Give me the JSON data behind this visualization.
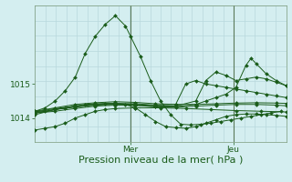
{
  "background_color": "#d4eef0",
  "grid_color": "#b8d8dc",
  "line_color": "#1a5c1a",
  "xlabel": "Pression niveau de la mer( hPa )",
  "xlabel_color": "#1a5c1a",
  "xlabel_fontsize": 8,
  "tick_color": "#1a5c1a",
  "xtick_labels": [
    "Mer",
    "Jeu"
  ],
  "xtick_positions": [
    0.38,
    0.79
  ],
  "ytick_labels": [
    "1014",
    "1015"
  ],
  "ytick_values": [
    1014,
    1015
  ],
  "ylim": [
    1013.3,
    1017.3
  ],
  "xlim": [
    0.0,
    1.0
  ],
  "n_vgrid": 25,
  "n_hgrid": 10,
  "series": [
    {
      "x": [
        0.0,
        0.04,
        0.08,
        0.12,
        0.16,
        0.2,
        0.24,
        0.28,
        0.32,
        0.36,
        0.38,
        0.42,
        0.46,
        0.5,
        0.54,
        0.58,
        0.62,
        0.66,
        0.7,
        0.74,
        0.78,
        0.82,
        0.86,
        0.9,
        0.94,
        0.98
      ],
      "y": [
        1014.2,
        1014.3,
        1014.5,
        1014.8,
        1015.2,
        1015.9,
        1016.4,
        1016.75,
        1017.0,
        1016.7,
        1016.4,
        1015.8,
        1015.1,
        1014.5,
        1014.1,
        1013.82,
        1013.8,
        1013.82,
        1013.85,
        1013.9,
        1013.95,
        1014.0,
        1014.05,
        1014.1,
        1014.15,
        1014.2
      ]
    },
    {
      "x": [
        0.0,
        0.04,
        0.08,
        0.12,
        0.16,
        0.2,
        0.24,
        0.28,
        0.32,
        0.36,
        0.4,
        0.44,
        0.48,
        0.52,
        0.56,
        0.6,
        0.64,
        0.68,
        0.72,
        0.76,
        0.8,
        0.84,
        0.88,
        0.92,
        0.96,
        1.0
      ],
      "y": [
        1014.2,
        1014.2,
        1014.25,
        1014.3,
        1014.35,
        1014.4,
        1014.42,
        1014.43,
        1014.43,
        1014.4,
        1014.3,
        1014.1,
        1013.9,
        1013.75,
        1013.72,
        1013.7,
        1013.75,
        1013.85,
        1013.95,
        1014.05,
        1014.1,
        1014.12,
        1014.12,
        1014.1,
        1014.08,
        1014.05
      ]
    },
    {
      "x": [
        0.0,
        0.08,
        0.16,
        0.24,
        0.32,
        0.4,
        0.48,
        0.56,
        0.64,
        0.72,
        0.8,
        0.88,
        0.96,
        1.0
      ],
      "y": [
        1014.2,
        1014.3,
        1014.4,
        1014.45,
        1014.48,
        1014.46,
        1014.42,
        1014.4,
        1014.4,
        1014.42,
        1014.44,
        1014.45,
        1014.44,
        1014.43
      ]
    },
    {
      "x": [
        0.0,
        0.08,
        0.16,
        0.24,
        0.32,
        0.4,
        0.48,
        0.56,
        0.6,
        0.64,
        0.68,
        0.72,
        0.76,
        0.8,
        0.84,
        0.88,
        0.92,
        0.96,
        1.0
      ],
      "y": [
        1014.1,
        1014.25,
        1014.35,
        1014.4,
        1014.43,
        1014.42,
        1014.38,
        1014.4,
        1015.0,
        1015.1,
        1015.0,
        1014.95,
        1014.9,
        1014.85,
        1014.8,
        1014.75,
        1014.7,
        1014.65,
        1014.6
      ]
    },
    {
      "x": [
        0.0,
        0.08,
        0.16,
        0.24,
        0.32,
        0.4,
        0.48,
        0.56,
        0.64,
        0.72,
        0.8,
        0.88,
        0.96,
        1.0
      ],
      "y": [
        1014.15,
        1014.2,
        1014.28,
        1014.35,
        1014.38,
        1014.37,
        1014.33,
        1014.32,
        1014.35,
        1014.38,
        1014.4,
        1014.4,
        1014.38,
        1014.36
      ]
    },
    {
      "x": [
        0.0,
        0.08,
        0.16,
        0.24,
        0.32,
        0.4,
        0.48,
        0.56,
        0.64,
        0.68,
        0.72,
        0.76,
        0.8,
        0.84,
        0.88,
        0.92,
        0.96,
        1.0
      ],
      "y": [
        1014.18,
        1014.28,
        1014.35,
        1014.4,
        1014.42,
        1014.4,
        1014.36,
        1014.35,
        1014.5,
        1015.1,
        1015.35,
        1015.25,
        1015.1,
        1015.15,
        1015.2,
        1015.15,
        1015.05,
        1014.95
      ]
    },
    {
      "x": [
        0.0,
        0.08,
        0.16,
        0.24,
        0.32,
        0.4,
        0.48,
        0.56,
        0.64,
        0.68,
        0.72,
        0.76,
        0.8,
        0.84,
        0.86,
        0.88,
        0.92,
        0.96,
        1.0
      ],
      "y": [
        1014.15,
        1014.25,
        1014.32,
        1014.38,
        1014.4,
        1014.38,
        1014.34,
        1014.33,
        1014.4,
        1014.5,
        1014.6,
        1014.7,
        1014.9,
        1015.55,
        1015.75,
        1015.6,
        1015.3,
        1015.1,
        1014.95
      ]
    },
    {
      "x": [
        0.0,
        0.04,
        0.08,
        0.12,
        0.16,
        0.2,
        0.24,
        0.28,
        0.32,
        0.4,
        0.5,
        0.6,
        0.7,
        0.8,
        0.9,
        1.0
      ],
      "y": [
        1013.65,
        1013.7,
        1013.75,
        1013.85,
        1014.0,
        1014.1,
        1014.2,
        1014.25,
        1014.28,
        1014.3,
        1014.3,
        1014.28,
        1014.25,
        1014.22,
        1014.2,
        1014.18
      ]
    }
  ],
  "vline_positions": [
    0.38,
    0.79
  ],
  "vline_color": "#5a7a5a"
}
